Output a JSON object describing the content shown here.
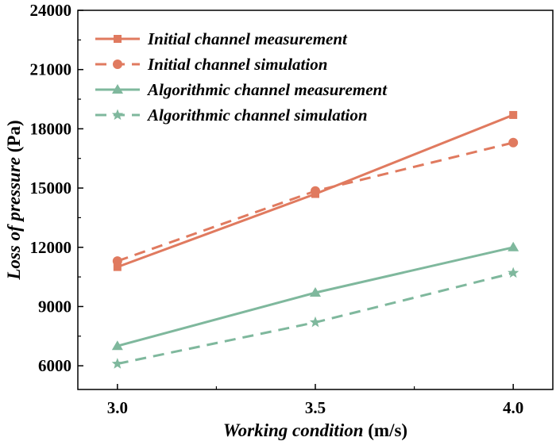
{
  "chart_data": {
    "type": "line",
    "xlabel": {
      "italic": "Working condition",
      "unit": " (m/s)"
    },
    "ylabel": {
      "italic": "Loss of pressure",
      "unit": " (Pa)"
    },
    "x": [
      3.0,
      3.5,
      4.0
    ],
    "x_ticks": [
      "3.0",
      "3.5",
      "4.0"
    ],
    "xlim": [
      2.9,
      4.1
    ],
    "ylim": [
      4800,
      24000
    ],
    "y_ticks": [
      6000,
      9000,
      12000,
      15000,
      18000,
      21000,
      24000
    ],
    "legend_position": "top-left",
    "grid": false,
    "series": [
      {
        "name": "Initial channel measurement",
        "values": [
          11000,
          14700,
          18700
        ],
        "color": "#e07a5f",
        "dash": "solid",
        "marker": "square"
      },
      {
        "name": "Initial channel simulation",
        "values": [
          11300,
          14850,
          17300
        ],
        "color": "#e07a5f",
        "dash": "dashed",
        "marker": "circle"
      },
      {
        "name": "Algorithmic channel measurement",
        "values": [
          7000,
          9700,
          12000
        ],
        "color": "#7fb89d",
        "dash": "solid",
        "marker": "triangle"
      },
      {
        "name": "Algorithmic channel simulation",
        "values": [
          6100,
          8200,
          10700
        ],
        "color": "#7fb89d",
        "dash": "dashed",
        "marker": "star"
      }
    ]
  }
}
